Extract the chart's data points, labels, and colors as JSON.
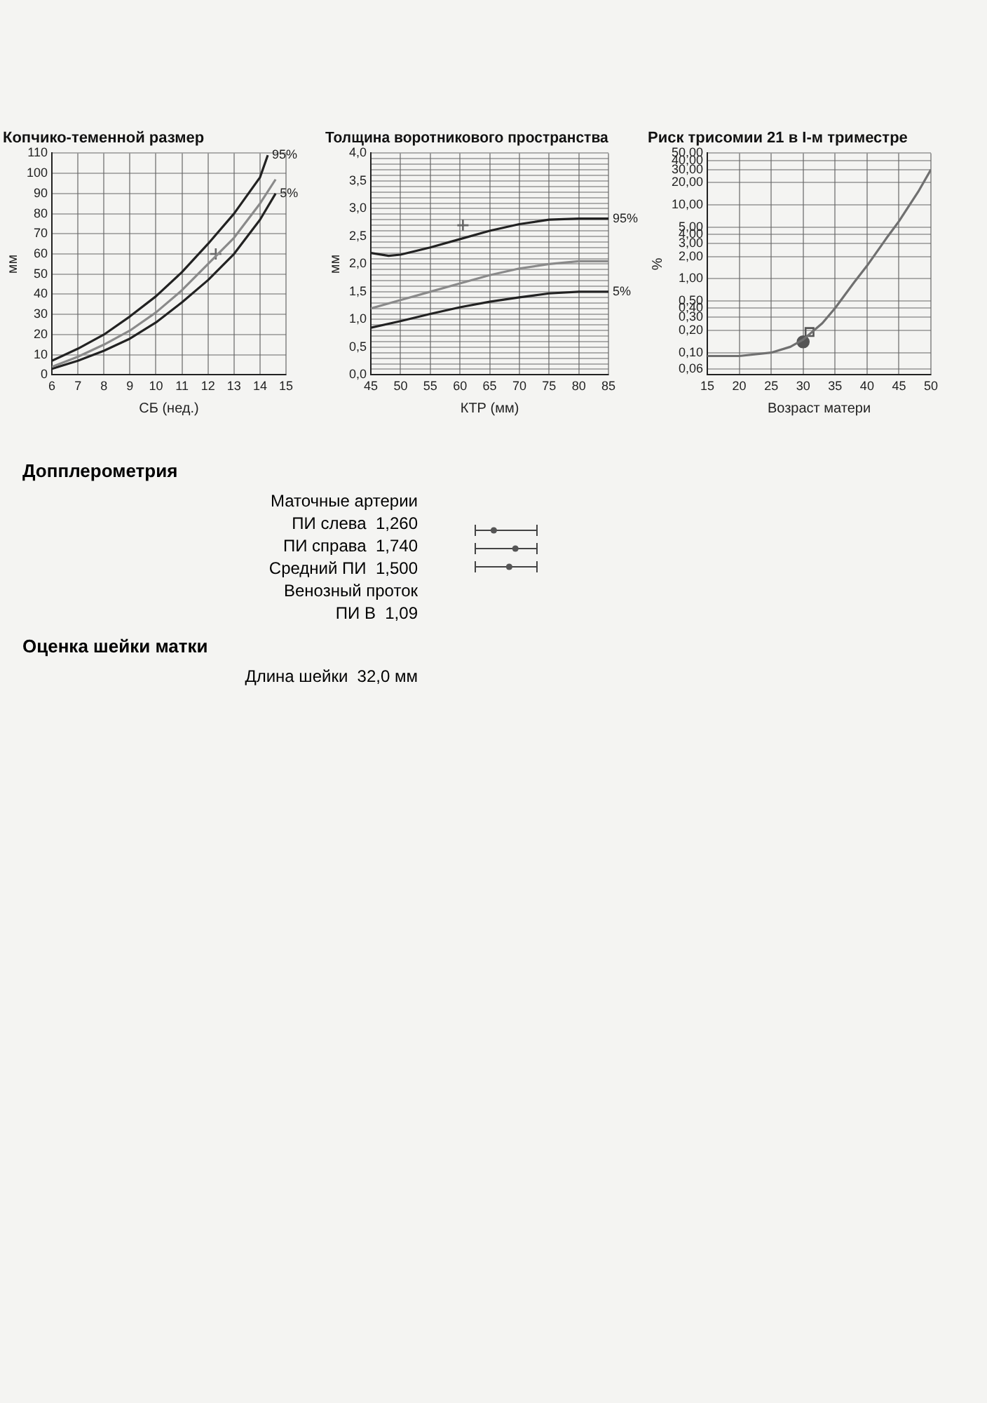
{
  "chart_data": [
    {
      "type": "line",
      "title": "Копчико-теменной размер",
      "xlabel": "СБ (нед.)",
      "ylabel": "мм",
      "xlim": [
        6,
        15
      ],
      "xticks": [
        6,
        7,
        8,
        9,
        10,
        11,
        12,
        13,
        14,
        15
      ],
      "ylim": [
        0,
        110
      ],
      "yticks": [
        0,
        10,
        20,
        30,
        40,
        50,
        60,
        70,
        80,
        90,
        100,
        110
      ],
      "grid": true,
      "series": [
        {
          "name": "95%",
          "color": "#222222",
          "x": [
            6,
            7,
            8,
            9,
            10,
            11,
            12,
            13,
            14,
            14.3
          ],
          "values": [
            7,
            13,
            20,
            29,
            39,
            51,
            65,
            80,
            98,
            109
          ]
        },
        {
          "color": "#8a8a8a",
          "x": [
            6,
            7,
            8,
            9,
            10,
            11,
            12,
            13,
            14,
            14.6
          ],
          "values": [
            4,
            9,
            15,
            22,
            31,
            42,
            55,
            68,
            85,
            97
          ]
        },
        {
          "name": "5%",
          "color": "#222222",
          "x": [
            6,
            7,
            8,
            9,
            10,
            11,
            12,
            13,
            14,
            14.6
          ],
          "values": [
            3,
            7,
            12,
            18,
            26,
            36,
            47,
            60,
            77,
            90
          ]
        },
        {
          "type": "scatter",
          "marker": "cross",
          "color": "#666666",
          "x": [
            12.3
          ],
          "values": [
            60
          ]
        }
      ]
    },
    {
      "type": "line",
      "title": "Толщина воротникового пространства",
      "xlabel": "КТР (мм)",
      "ylabel": "мм",
      "xlim": [
        45,
        85
      ],
      "xticks": [
        45,
        50,
        55,
        60,
        65,
        70,
        75,
        80,
        85
      ],
      "ylim": [
        0,
        4
      ],
      "yticks": [
        {
          "value": 0,
          "label": "0,0"
        },
        {
          "value": 0.1,
          "label": null
        },
        {
          "value": 0.2,
          "label": null
        },
        {
          "value": 0.3,
          "label": null
        },
        {
          "value": 0.4,
          "label": null
        },
        {
          "value": 0.5,
          "label": "0,5"
        },
        {
          "value": 0.6,
          "label": null
        },
        {
          "value": 0.7,
          "label": null
        },
        {
          "value": 0.8,
          "label": null
        },
        {
          "value": 0.9,
          "label": null
        },
        {
          "value": 1,
          "label": "1,0"
        },
        {
          "value": 1.1,
          "label": null
        },
        {
          "value": 1.2,
          "label": null
        },
        {
          "value": 1.3,
          "label": null
        },
        {
          "value": 1.4,
          "label": null
        },
        {
          "value": 1.5,
          "label": "1,5"
        },
        {
          "value": 1.6,
          "label": null
        },
        {
          "value": 1.7,
          "label": null
        },
        {
          "value": 1.8,
          "label": null
        },
        {
          "value": 1.9,
          "label": null
        },
        {
          "value": 2,
          "label": "2,0"
        },
        {
          "value": 2.1,
          "label": null
        },
        {
          "value": 2.2,
          "label": null
        },
        {
          "value": 2.3,
          "label": null
        },
        {
          "value": 2.4,
          "label": null
        },
        {
          "value": 2.5,
          "label": "2,5"
        },
        {
          "value": 2.6,
          "label": null
        },
        {
          "value": 2.7,
          "label": null
        },
        {
          "value": 2.8,
          "label": null
        },
        {
          "value": 2.9,
          "label": null
        },
        {
          "value": 3,
          "label": "3,0"
        },
        {
          "value": 3.1,
          "label": null
        },
        {
          "value": 3.2,
          "label": null
        },
        {
          "value": 3.3,
          "label": null
        },
        {
          "value": 3.4,
          "label": null
        },
        {
          "value": 3.5,
          "label": "3,5"
        },
        {
          "value": 3.6,
          "label": null
        },
        {
          "value": 3.7,
          "label": null
        },
        {
          "value": 3.8,
          "label": null
        },
        {
          "value": 3.9,
          "label": null
        },
        {
          "value": 4,
          "label": "4,0"
        }
      ],
      "grid": true,
      "series": [
        {
          "name": "95%",
          "color": "#222222",
          "x": [
            45,
            48,
            50,
            55,
            60,
            65,
            70,
            75,
            80,
            85
          ],
          "values": [
            2.2,
            2.15,
            2.17,
            2.3,
            2.45,
            2.6,
            2.72,
            2.8,
            2.82,
            2.82
          ]
        },
        {
          "color": "#8a8a8a",
          "x": [
            45,
            50,
            55,
            60,
            65,
            70,
            75,
            80,
            85
          ],
          "values": [
            1.2,
            1.35,
            1.5,
            1.65,
            1.8,
            1.92,
            2,
            2.05,
            2.05
          ]
        },
        {
          "name": "5%",
          "color": "#222222",
          "x": [
            45,
            50,
            55,
            60,
            65,
            70,
            75,
            80,
            85
          ],
          "values": [
            0.85,
            0.97,
            1.1,
            1.22,
            1.32,
            1.4,
            1.47,
            1.5,
            1.5
          ]
        },
        {
          "type": "scatter",
          "marker": "cross",
          "color": "#666666",
          "x": [
            60.5
          ],
          "values": [
            2.7
          ]
        }
      ]
    },
    {
      "type": "line",
      "title": "Риск трисомии 21 в I-м триместре",
      "xlabel": "Возраст матери",
      "ylabel": "%",
      "log": true,
      "xlim": [
        15,
        50
      ],
      "xticks": [
        15,
        20,
        25,
        30,
        35,
        40,
        45,
        50
      ],
      "ylim": [
        0.05,
        50
      ],
      "yticks": [
        {
          "value": 0.06,
          "label": "0,06"
        },
        {
          "value": 0.1,
          "label": "0,10"
        },
        {
          "value": 0.2,
          "label": "0,20"
        },
        {
          "value": 0.3,
          "label": "0,30"
        },
        {
          "value": 0.4,
          "label": "0,40"
        },
        {
          "value": 0.5,
          "label": "0,50"
        },
        {
          "value": 1,
          "label": "1,00"
        },
        {
          "value": 2,
          "label": "2,00"
        },
        {
          "value": 3,
          "label": "3,00"
        },
        {
          "value": 4,
          "label": "4,00"
        },
        {
          "value": 5,
          "label": "5,00"
        },
        {
          "value": 10,
          "label": "10,00"
        },
        {
          "value": 20,
          "label": "20,00"
        },
        {
          "value": 30,
          "label": "30,00"
        },
        {
          "value": 40,
          "label": "40,00"
        },
        {
          "value": 50,
          "label": "50,00"
        }
      ],
      "grid": true,
      "series": [
        {
          "color": "#707070",
          "x": [
            15,
            20,
            25,
            28,
            30,
            33,
            35,
            38,
            40,
            43,
            45,
            48,
            50
          ],
          "values": [
            0.09,
            0.09,
            0.1,
            0.12,
            0.15,
            0.25,
            0.4,
            0.9,
            1.5,
            3.5,
            6,
            15,
            30
          ]
        },
        {
          "type": "scatter",
          "marker": "circle",
          "color": "#555555",
          "x": [
            30
          ],
          "values": [
            0.14
          ]
        },
        {
          "type": "scatter",
          "marker": "square",
          "color": "#555555",
          "x": [
            31
          ],
          "values": [
            0.19
          ]
        }
      ]
    },
    {
      "type": "other",
      "title": "Допплерометрия",
      "annotations": [
        "Маточные артерии",
        "ПИ слева  1,260",
        "ПИ справа  1,740",
        "Средний ПИ  1,500",
        "Венозный проток",
        "ПИ В  1,09"
      ]
    },
    {
      "type": "other",
      "title": "Оценка шейки матки",
      "annotations": [
        "Длина шейки  32,0 мм"
      ]
    }
  ]
}
